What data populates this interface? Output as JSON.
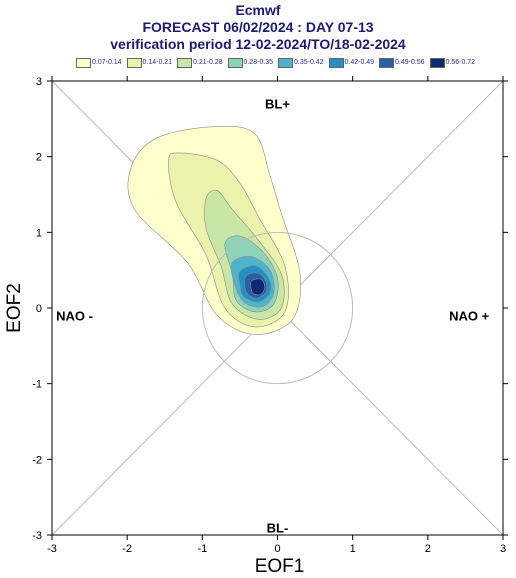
{
  "header": {
    "line1": "Ecmwf",
    "line2": "FORECAST 06/02/2024 : DAY 07-13",
    "line3": "verification period 12-02-2024/TO/18-02-2024"
  },
  "legend": [
    {
      "label": "0.07-0.14",
      "color": "#ffffcc"
    },
    {
      "label": "0.14-0.21",
      "color": "#eaf2ab"
    },
    {
      "label": "0.21-0.28",
      "color": "#c8e6a6"
    },
    {
      "label": "0.28-0.35",
      "color": "#8dd3b8"
    },
    {
      "label": "0.35-0.42",
      "color": "#4db4cc"
    },
    {
      "label": "0.42-0.49",
      "color": "#2290c2"
    },
    {
      "label": "0.49-0.56",
      "color": "#2660a8"
    },
    {
      "label": "0.56-0.72",
      "color": "#0c2a72"
    }
  ],
  "chart_data": {
    "type": "contour",
    "xlabel": "EOF1",
    "ylabel": "EOF2",
    "xlim": [
      -3,
      3
    ],
    "ylim": [
      -3,
      3
    ],
    "x_ticks": [
      -3,
      -2,
      -1,
      0,
      1,
      2,
      3
    ],
    "y_ticks": [
      -3,
      -2,
      -1,
      0,
      1,
      2,
      3
    ],
    "regime_labels": {
      "top": "BL+",
      "bottom": "BL-",
      "left": "NAO -",
      "right": "NAO +"
    },
    "reference_circle_radius": 1,
    "density_peak": {
      "x": -0.25,
      "y": 0.28,
      "level": "0.56-0.72"
    },
    "levels": [
      0.07,
      0.14,
      0.21,
      0.28,
      0.35,
      0.42,
      0.49,
      0.56,
      0.72
    ],
    "contours": [
      {
        "level": "0.07-0.14",
        "points": [
          [
            -1.95,
            1.85
          ],
          [
            -1.6,
            2.25
          ],
          [
            -0.8,
            2.4
          ],
          [
            -0.3,
            2.3
          ],
          [
            -0.1,
            1.75
          ],
          [
            0.05,
            1.25
          ],
          [
            0.3,
            0.45
          ],
          [
            0.2,
            -0.15
          ],
          [
            -0.3,
            -0.35
          ],
          [
            -0.8,
            -0.1
          ],
          [
            -1.2,
            0.6
          ],
          [
            -1.9,
            1.3
          ]
        ]
      },
      {
        "level": "0.14-0.21",
        "points": [
          [
            -1.45,
            1.95
          ],
          [
            -1.3,
            2.05
          ],
          [
            -0.8,
            1.95
          ],
          [
            -0.5,
            1.65
          ],
          [
            -0.25,
            1.2
          ],
          [
            0.1,
            0.55
          ],
          [
            0.1,
            -0.05
          ],
          [
            -0.3,
            -0.25
          ],
          [
            -0.7,
            0.0
          ],
          [
            -0.95,
            0.7
          ],
          [
            -1.35,
            1.4
          ]
        ]
      },
      {
        "level": "0.21-0.28",
        "points": [
          [
            -0.95,
            1.45
          ],
          [
            -0.8,
            1.55
          ],
          [
            -0.6,
            1.3
          ],
          [
            -0.3,
            0.95
          ],
          [
            0.05,
            0.45
          ],
          [
            0.05,
            0.0
          ],
          [
            -0.25,
            -0.15
          ],
          [
            -0.6,
            0.05
          ],
          [
            -0.75,
            0.55
          ],
          [
            -0.95,
            1.05
          ]
        ]
      },
      {
        "level": "0.28-0.35",
        "points": [
          [
            -0.7,
            0.85
          ],
          [
            -0.5,
            0.95
          ],
          [
            -0.2,
            0.75
          ],
          [
            0.0,
            0.4
          ],
          [
            -0.05,
            0.05
          ],
          [
            -0.3,
            -0.05
          ],
          [
            -0.55,
            0.1
          ],
          [
            -0.6,
            0.45
          ]
        ]
      },
      {
        "level": "0.35-0.42",
        "points": [
          [
            -0.6,
            0.6
          ],
          [
            -0.35,
            0.68
          ],
          [
            -0.1,
            0.5
          ],
          [
            -0.05,
            0.2
          ],
          [
            -0.2,
            0.02
          ],
          [
            -0.45,
            0.08
          ],
          [
            -0.58,
            0.35
          ]
        ]
      },
      {
        "level": "0.42-0.49",
        "points": [
          [
            -0.5,
            0.48
          ],
          [
            -0.3,
            0.56
          ],
          [
            -0.12,
            0.4
          ],
          [
            -0.1,
            0.2
          ],
          [
            -0.25,
            0.08
          ],
          [
            -0.45,
            0.15
          ],
          [
            -0.5,
            0.32
          ]
        ]
      },
      {
        "level": "0.49-0.56",
        "points": [
          [
            -0.42,
            0.42
          ],
          [
            -0.25,
            0.46
          ],
          [
            -0.15,
            0.34
          ],
          [
            -0.16,
            0.2
          ],
          [
            -0.3,
            0.13
          ],
          [
            -0.42,
            0.22
          ]
        ]
      },
      {
        "level": "0.56-0.72",
        "points": [
          [
            -0.35,
            0.35
          ],
          [
            -0.22,
            0.38
          ],
          [
            -0.17,
            0.28
          ],
          [
            -0.22,
            0.18
          ],
          [
            -0.33,
            0.2
          ]
        ]
      }
    ]
  }
}
